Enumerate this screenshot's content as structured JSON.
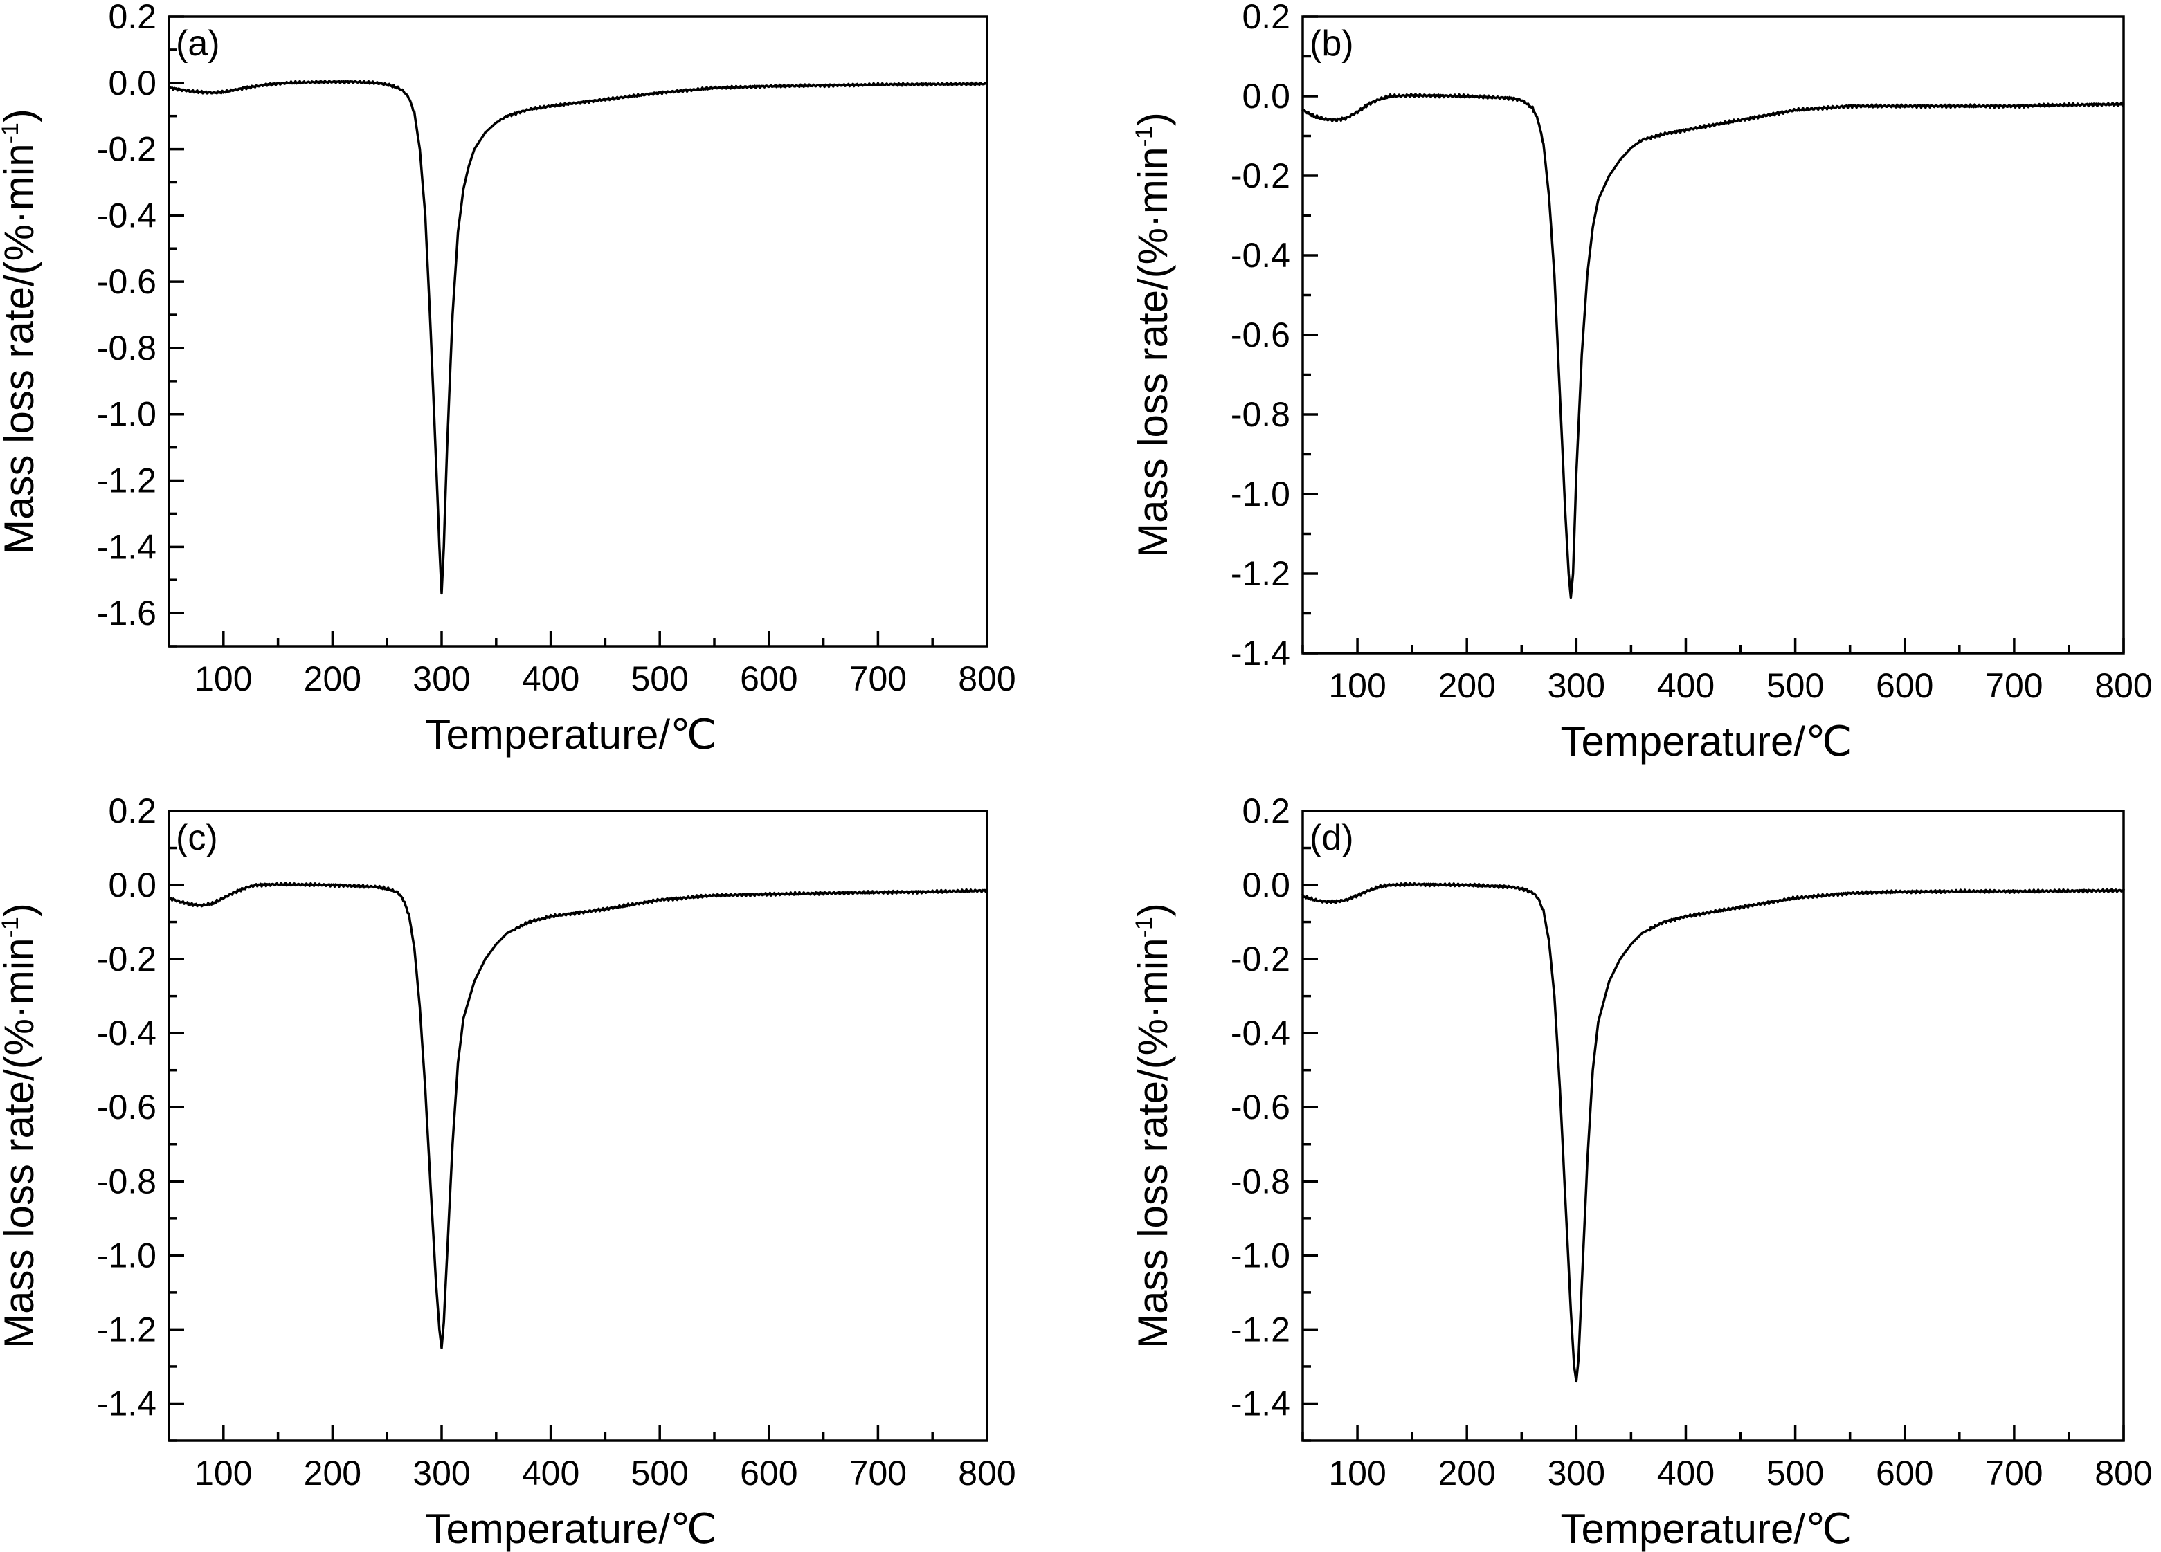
{
  "figure": {
    "background_color": "#ffffff",
    "line_color": "#000000"
  },
  "chart_data": [
    {
      "type": "line",
      "panel_label": "(a)",
      "xlabel": "Temperature/℃",
      "ylabel": "Mass loss rate/(%·min",
      "ylabel_sup": "-1",
      "ylabel_tail": ")",
      "xlim": [
        50,
        800
      ],
      "ylim": [
        -1.7,
        0.2
      ],
      "x_ticks": [
        100,
        200,
        300,
        400,
        500,
        600,
        700,
        800
      ],
      "y_ticks": [
        0.2,
        0.0,
        -0.2,
        -0.4,
        -0.6,
        -0.8,
        -1.0,
        -1.2,
        -1.4,
        -1.6
      ],
      "x_tick_labels": [
        "100",
        "200",
        "300",
        "400",
        "500",
        "600",
        "700",
        "800"
      ],
      "y_tick_labels": [
        "0.2",
        "0.0",
        "-0.2",
        "-0.4",
        "-0.6",
        "-0.8",
        "-1.0",
        "-1.2",
        "-1.4",
        "-1.6"
      ],
      "grid": false,
      "series": [
        {
          "x": [
            50,
            60,
            70,
            80,
            90,
            100,
            120,
            140,
            160,
            180,
            200,
            220,
            240,
            250,
            260,
            265,
            270,
            275,
            280,
            285,
            290,
            295,
            298,
            300,
            302,
            305,
            310,
            315,
            320,
            325,
            330,
            340,
            350,
            360,
            380,
            400,
            450,
            500,
            550,
            600,
            650,
            700,
            750,
            800
          ],
          "y": [
            -0.015,
            -0.02,
            -0.025,
            -0.028,
            -0.03,
            -0.028,
            -0.015,
            -0.005,
            0.0,
            0.002,
            0.003,
            0.003,
            0.0,
            -0.005,
            -0.015,
            -0.025,
            -0.045,
            -0.09,
            -0.2,
            -0.4,
            -0.75,
            -1.15,
            -1.4,
            -1.54,
            -1.4,
            -1.1,
            -0.7,
            -0.45,
            -0.32,
            -0.25,
            -0.2,
            -0.15,
            -0.12,
            -0.1,
            -0.08,
            -0.07,
            -0.05,
            -0.03,
            -0.015,
            -0.01,
            -0.008,
            -0.005,
            -0.004,
            -0.003
          ]
        }
      ]
    },
    {
      "type": "line",
      "panel_label": "(b)",
      "xlabel": "Temperature/℃",
      "ylabel": "Mass loss rate/(%·min",
      "ylabel_sup": "-1",
      "ylabel_tail": ")",
      "xlim": [
        50,
        800
      ],
      "ylim": [
        -1.4,
        0.2
      ],
      "x_ticks": [
        100,
        200,
        300,
        400,
        500,
        600,
        700,
        800
      ],
      "y_ticks": [
        0.2,
        0.0,
        -0.2,
        -0.4,
        -0.6,
        -0.8,
        -1.0,
        -1.2,
        -1.4
      ],
      "x_tick_labels": [
        "100",
        "200",
        "300",
        "400",
        "500",
        "600",
        "700",
        "800"
      ],
      "y_tick_labels": [
        "0.2",
        "0.0",
        "-0.2",
        "-0.4",
        "-0.6",
        "-0.8",
        "-1.0",
        "-1.2",
        "-1.4"
      ],
      "grid": false,
      "series": [
        {
          "x": [
            50,
            60,
            70,
            80,
            90,
            100,
            110,
            120,
            130,
            150,
            200,
            240,
            250,
            260,
            265,
            270,
            275,
            280,
            285,
            290,
            293,
            295,
            297,
            300,
            305,
            310,
            315,
            320,
            330,
            340,
            350,
            360,
            380,
            400,
            450,
            500,
            550,
            600,
            650,
            700,
            750,
            800
          ],
          "y": [
            -0.035,
            -0.05,
            -0.058,
            -0.06,
            -0.055,
            -0.04,
            -0.02,
            -0.008,
            0.0,
            0.002,
            0.0,
            -0.005,
            -0.01,
            -0.03,
            -0.06,
            -0.12,
            -0.25,
            -0.45,
            -0.75,
            -1.05,
            -1.2,
            -1.26,
            -1.2,
            -0.95,
            -0.65,
            -0.45,
            -0.33,
            -0.26,
            -0.2,
            -0.16,
            -0.13,
            -0.11,
            -0.095,
            -0.085,
            -0.06,
            -0.035,
            -0.025,
            -0.025,
            -0.025,
            -0.025,
            -0.022,
            -0.02
          ]
        }
      ]
    },
    {
      "type": "line",
      "panel_label": "(c)",
      "xlabel": "Temperature/℃",
      "ylabel": "Mass loss rate/(%·min",
      "ylabel_sup": "-1",
      "ylabel_tail": ")",
      "xlim": [
        50,
        800
      ],
      "ylim": [
        -1.5,
        0.2
      ],
      "x_ticks": [
        100,
        200,
        300,
        400,
        500,
        600,
        700,
        800
      ],
      "y_ticks": [
        0.2,
        0.0,
        -0.2,
        -0.4,
        -0.6,
        -0.8,
        -1.0,
        -1.2,
        -1.4
      ],
      "x_tick_labels": [
        "100",
        "200",
        "300",
        "400",
        "500",
        "600",
        "700",
        "800"
      ],
      "y_tick_labels": [
        "0.2",
        "0.0",
        "-0.2",
        "-0.4",
        "-0.6",
        "-0.8",
        "-1.0",
        "-1.2",
        "-1.4"
      ],
      "grid": false,
      "series": [
        {
          "x": [
            50,
            60,
            70,
            80,
            90,
            100,
            110,
            120,
            130,
            150,
            200,
            240,
            250,
            260,
            265,
            270,
            275,
            280,
            285,
            290,
            295,
            298,
            300,
            302,
            305,
            310,
            315,
            320,
            330,
            340,
            350,
            360,
            380,
            400,
            450,
            500,
            550,
            600,
            650,
            700,
            750,
            800
          ],
          "y": [
            -0.035,
            -0.045,
            -0.052,
            -0.055,
            -0.05,
            -0.035,
            -0.02,
            -0.008,
            0.0,
            0.002,
            0.0,
            -0.005,
            -0.01,
            -0.02,
            -0.04,
            -0.08,
            -0.17,
            -0.33,
            -0.55,
            -0.82,
            -1.08,
            -1.2,
            -1.25,
            -1.18,
            -1.0,
            -0.7,
            -0.48,
            -0.36,
            -0.26,
            -0.2,
            -0.16,
            -0.13,
            -0.1,
            -0.085,
            -0.065,
            -0.04,
            -0.028,
            -0.025,
            -0.022,
            -0.02,
            -0.018,
            -0.015
          ]
        }
      ]
    },
    {
      "type": "line",
      "panel_label": "(d)",
      "xlabel": "Temperature/℃",
      "ylabel": "Mass loss rate/(%·min",
      "ylabel_sup": "-1",
      "ylabel_tail": ")",
      "xlim": [
        50,
        800
      ],
      "ylim": [
        -1.5,
        0.2
      ],
      "x_ticks": [
        100,
        200,
        300,
        400,
        500,
        600,
        700,
        800
      ],
      "y_ticks": [
        0.2,
        0.0,
        -0.2,
        -0.4,
        -0.6,
        -0.8,
        -1.0,
        -1.2,
        -1.4
      ],
      "x_tick_labels": [
        "100",
        "200",
        "300",
        "400",
        "500",
        "600",
        "700",
        "800"
      ],
      "y_tick_labels": [
        "0.2",
        "0.0",
        "-0.2",
        "-0.4",
        "-0.6",
        "-0.8",
        "-1.0",
        "-1.2",
        "-1.4"
      ],
      "grid": false,
      "series": [
        {
          "x": [
            50,
            60,
            70,
            80,
            90,
            100,
            110,
            120,
            130,
            150,
            200,
            240,
            250,
            260,
            265,
            270,
            275,
            280,
            285,
            290,
            295,
            298,
            300,
            302,
            305,
            310,
            315,
            320,
            330,
            340,
            350,
            360,
            380,
            400,
            450,
            500,
            550,
            600,
            650,
            700,
            750,
            800
          ],
          "y": [
            -0.03,
            -0.04,
            -0.045,
            -0.045,
            -0.04,
            -0.028,
            -0.015,
            -0.005,
            0.0,
            0.002,
            0.0,
            -0.005,
            -0.01,
            -0.02,
            -0.035,
            -0.07,
            -0.15,
            -0.3,
            -0.55,
            -0.85,
            -1.15,
            -1.3,
            -1.34,
            -1.28,
            -1.08,
            -0.75,
            -0.5,
            -0.37,
            -0.26,
            -0.2,
            -0.16,
            -0.13,
            -0.1,
            -0.085,
            -0.06,
            -0.035,
            -0.022,
            -0.018,
            -0.017,
            -0.017,
            -0.016,
            -0.015
          ]
        }
      ]
    }
  ]
}
